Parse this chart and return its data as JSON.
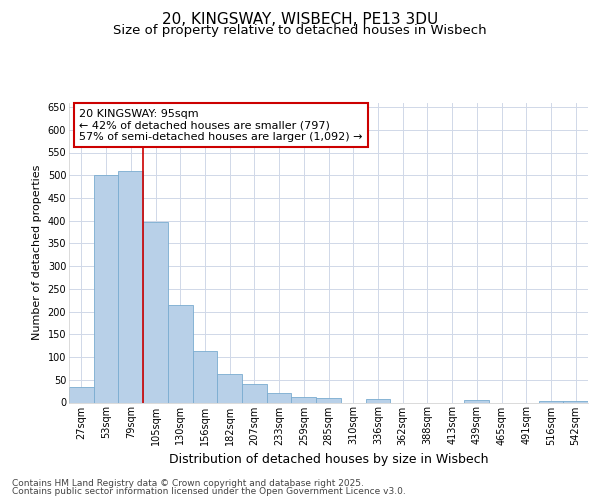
{
  "title1": "20, KINGSWAY, WISBECH, PE13 3DU",
  "title2": "Size of property relative to detached houses in Wisbech",
  "xlabel": "Distribution of detached houses by size in Wisbech",
  "ylabel": "Number of detached properties",
  "categories": [
    "27sqm",
    "53sqm",
    "79sqm",
    "105sqm",
    "130sqm",
    "156sqm",
    "182sqm",
    "207sqm",
    "233sqm",
    "259sqm",
    "285sqm",
    "310sqm",
    "336sqm",
    "362sqm",
    "388sqm",
    "413sqm",
    "439sqm",
    "465sqm",
    "491sqm",
    "516sqm",
    "542sqm"
  ],
  "values": [
    35,
    500,
    510,
    397,
    215,
    113,
    63,
    40,
    22,
    13,
    10,
    0,
    8,
    0,
    0,
    0,
    5,
    0,
    0,
    3,
    3
  ],
  "bar_color": "#b8d0e8",
  "bar_edge_color": "#7aacd0",
  "vline_x_index": 3,
  "vline_color": "#cc0000",
  "annotation_text": "20 KINGSWAY: 95sqm\n← 42% of detached houses are smaller (797)\n57% of semi-detached houses are larger (1,092) →",
  "annotation_box_color": "white",
  "annotation_box_edge": "#cc0000",
  "ylim": [
    0,
    660
  ],
  "yticks": [
    0,
    50,
    100,
    150,
    200,
    250,
    300,
    350,
    400,
    450,
    500,
    550,
    600,
    650
  ],
  "footer1": "Contains HM Land Registry data © Crown copyright and database right 2025.",
  "footer2": "Contains public sector information licensed under the Open Government Licence v3.0.",
  "bg_color": "#ffffff",
  "plot_bg_color": "#ffffff",
  "grid_color": "#d0d8e8",
  "title_fontsize": 11,
  "subtitle_fontsize": 9.5,
  "tick_fontsize": 7,
  "ylabel_fontsize": 8,
  "xlabel_fontsize": 9,
  "ann_fontsize": 8
}
